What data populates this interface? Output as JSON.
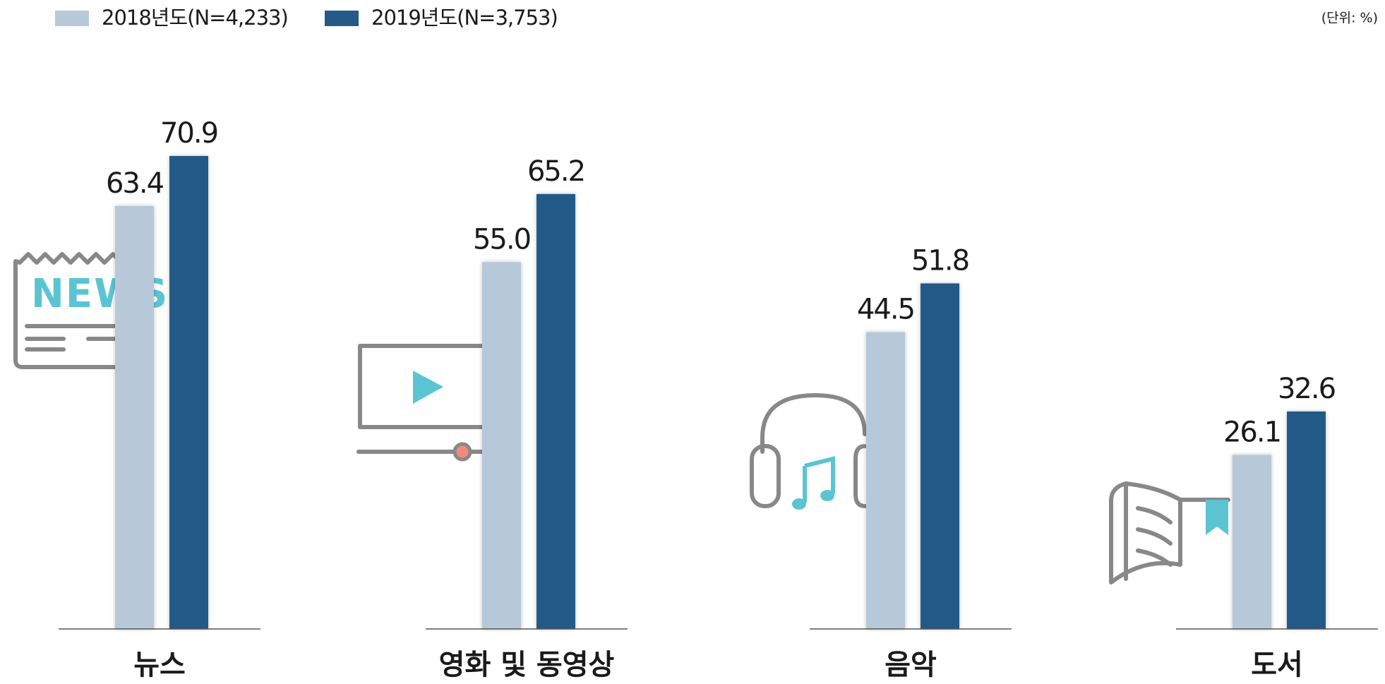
{
  "chart_data": {
    "type": "bar",
    "unit_note": "(단위: %)",
    "categories": [
      "뉴스",
      "영화 및 동영상",
      "음악",
      "도서"
    ],
    "series": [
      {
        "name": "2018년도(N=4,233)",
        "color": "#b7c9d8",
        "values": [
          63.4,
          55,
          44.5,
          26.1
        ],
        "value_labels": [
          "63.4",
          "55.0",
          "44.5",
          "26.1"
        ]
      },
      {
        "name": "2019년도(N=3,753)",
        "color": "#235a87",
        "values": [
          70.9,
          65.2,
          51.8,
          32.6
        ],
        "value_labels": [
          "70.9",
          "65.2",
          "51.8",
          "32.6"
        ]
      }
    ]
  }
}
